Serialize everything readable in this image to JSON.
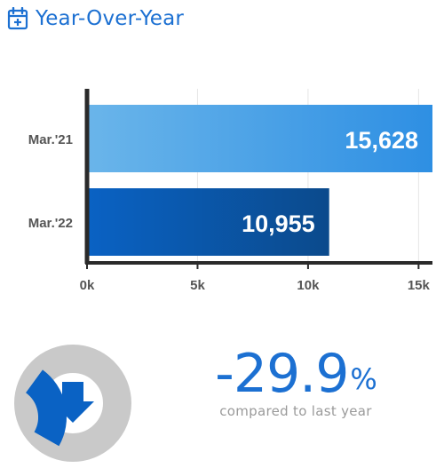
{
  "header": {
    "title": "Year-Over-Year",
    "icon": "calendar-plus-icon"
  },
  "summary": {
    "change_value": "-29.9",
    "change_unit": "%",
    "caption": "compared to last year",
    "direction_icon": "arrow-down-icon",
    "donut_fraction": 0.299
  },
  "colors": {
    "accent": "#1c70d2",
    "bar_2021_start": "#6ab5ea",
    "bar_2021_end": "#2e8fe3",
    "bar_2022_start": "#0a62c4",
    "bar_2022_end": "#0b4a8c",
    "donut_track": "#c9c9c9",
    "donut_fill": "#0a62c4",
    "axis": "#2a2a2a",
    "grid": "#e6e6e6"
  },
  "chart_data": {
    "type": "bar",
    "orientation": "horizontal",
    "categories": [
      "Mar.'21",
      "Mar.'22"
    ],
    "values": [
      15628,
      10955
    ],
    "value_labels": [
      "15,628",
      "10,955"
    ],
    "xlim": [
      0,
      15628
    ],
    "xticks": [
      0,
      5000,
      10000,
      15000
    ],
    "xtick_labels": [
      "0k",
      "5k",
      "10k",
      "15k"
    ],
    "grid": true
  }
}
